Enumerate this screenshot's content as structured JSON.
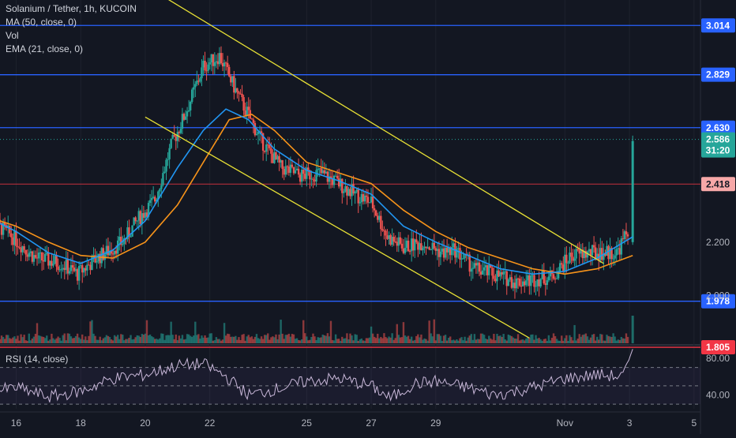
{
  "header": {
    "title": "Solanium / Tether, 1h, KUCOIN",
    "indicators": [
      "MA (50, close, 0)",
      "Vol",
      "EMA (21, close, 0)"
    ]
  },
  "rsi": {
    "label": "RSI (14, close)",
    "ticks": [
      "80.00",
      "40.00"
    ]
  },
  "colors": {
    "background": "#131722",
    "up": "#26a69a",
    "down": "#ef5350",
    "ma": "#f7931a",
    "ema": "#2196f3",
    "channel": "#e8e135",
    "support_line": "#2962ff",
    "red_line": "#f23645",
    "rsi_line": "#c9b8d9"
  },
  "chart_data": {
    "type": "candlestick",
    "symbol": "Solanium / Tether",
    "interval": "1h",
    "exchange": "KUCOIN",
    "x_ticks": [
      "16",
      "18",
      "20",
      "22",
      "25",
      "27",
      "29",
      "Nov",
      "3",
      "5"
    ],
    "y_ticks": [
      "2.200",
      "2.000"
    ],
    "price_range": [
      1.82,
      3.08
    ],
    "current_price": "2.586",
    "countdown": "31:20",
    "horizontal_levels": [
      {
        "value": 3.014,
        "label": "3.014",
        "style": "blue"
      },
      {
        "value": 2.829,
        "label": "2.829",
        "style": "blue"
      },
      {
        "value": 2.63,
        "label": "2.630",
        "style": "blue"
      },
      {
        "value": 2.418,
        "label": "2.418",
        "style": "red"
      },
      {
        "value": 1.978,
        "label": "1.978",
        "style": "blue"
      },
      {
        "value": 1.805,
        "label": "1.805",
        "style": "redsolid"
      }
    ],
    "channel_upper": [
      [
        20.6,
        3.12
      ],
      [
        34.2,
        2.12
      ]
    ],
    "channel_lower": [
      [
        20.0,
        2.67
      ],
      [
        31.9,
        1.84
      ]
    ],
    "candle_path": [
      [
        15.0,
        2.3
      ],
      [
        15.8,
        2.23
      ],
      [
        16.6,
        2.14
      ],
      [
        17.4,
        2.12
      ],
      [
        17.9,
        2.08
      ],
      [
        18.5,
        2.14
      ],
      [
        19.3,
        2.2
      ],
      [
        19.8,
        2.29
      ],
      [
        20.3,
        2.36
      ],
      [
        20.8,
        2.56
      ],
      [
        21.3,
        2.7
      ],
      [
        21.8,
        2.86
      ],
      [
        22.3,
        2.9
      ],
      [
        22.8,
        2.77
      ],
      [
        23.6,
        2.58
      ],
      [
        24.2,
        2.48
      ],
      [
        24.8,
        2.45
      ],
      [
        25.4,
        2.46
      ],
      [
        26.0,
        2.42
      ],
      [
        26.5,
        2.38
      ],
      [
        27.0,
        2.35
      ],
      [
        27.5,
        2.22
      ],
      [
        28.0,
        2.18
      ],
      [
        28.6,
        2.2
      ],
      [
        29.2,
        2.16
      ],
      [
        29.6,
        2.17
      ],
      [
        30.2,
        2.1
      ],
      [
        30.8,
        2.08
      ],
      [
        31.5,
        2.05
      ],
      [
        32.0,
        2.06
      ],
      [
        32.6,
        2.07
      ],
      [
        33.2,
        2.15
      ],
      [
        33.8,
        2.16
      ],
      [
        34.6,
        2.16
      ],
      [
        35.0,
        2.25
      ]
    ],
    "breakout": {
      "x": 35.1,
      "open": 2.2,
      "high": 2.6,
      "low": 2.19,
      "close": 2.58
    },
    "ema_path": [
      [
        15.0,
        2.3
      ],
      [
        16.0,
        2.24
      ],
      [
        17.0,
        2.16
      ],
      [
        18.0,
        2.12
      ],
      [
        19.0,
        2.17
      ],
      [
        20.0,
        2.28
      ],
      [
        21.0,
        2.48
      ],
      [
        21.8,
        2.62
      ],
      [
        22.5,
        2.7
      ],
      [
        23.2,
        2.66
      ],
      [
        24.0,
        2.55
      ],
      [
        25.0,
        2.47
      ],
      [
        26.0,
        2.43
      ],
      [
        27.0,
        2.38
      ],
      [
        28.0,
        2.26
      ],
      [
        29.0,
        2.2
      ],
      [
        30.0,
        2.15
      ],
      [
        31.0,
        2.1
      ],
      [
        32.0,
        2.08
      ],
      [
        33.0,
        2.09
      ],
      [
        34.0,
        2.14
      ],
      [
        35.1,
        2.22
      ]
    ],
    "ma_path": [
      [
        15.0,
        2.3
      ],
      [
        16.0,
        2.26
      ],
      [
        17.0,
        2.2
      ],
      [
        18.0,
        2.15
      ],
      [
        19.0,
        2.14
      ],
      [
        20.0,
        2.2
      ],
      [
        21.0,
        2.34
      ],
      [
        21.8,
        2.5
      ],
      [
        22.6,
        2.66
      ],
      [
        23.3,
        2.68
      ],
      [
        24.0,
        2.62
      ],
      [
        25.0,
        2.5
      ],
      [
        26.0,
        2.46
      ],
      [
        27.0,
        2.42
      ],
      [
        28.0,
        2.32
      ],
      [
        29.0,
        2.24
      ],
      [
        30.0,
        2.18
      ],
      [
        31.0,
        2.14
      ],
      [
        32.0,
        2.1
      ],
      [
        33.0,
        2.08
      ],
      [
        34.0,
        2.1
      ],
      [
        35.1,
        2.15
      ]
    ],
    "rsi_range": [
      25,
      92
    ],
    "rsi_levels": [
      70,
      50,
      30
    ],
    "rsi_path": [
      [
        15.0,
        42
      ],
      [
        16.0,
        48
      ],
      [
        17.0,
        38
      ],
      [
        18.0,
        44
      ],
      [
        19.0,
        58
      ],
      [
        20.0,
        62
      ],
      [
        21.0,
        72
      ],
      [
        21.8,
        74
      ],
      [
        22.5,
        60
      ],
      [
        23.2,
        40
      ],
      [
        24.0,
        46
      ],
      [
        25.0,
        55
      ],
      [
        26.0,
        58
      ],
      [
        27.0,
        50
      ],
      [
        27.6,
        36
      ],
      [
        28.3,
        52
      ],
      [
        29.0,
        55
      ],
      [
        30.0,
        48
      ],
      [
        30.8,
        40
      ],
      [
        31.5,
        44
      ],
      [
        32.2,
        50
      ],
      [
        33.0,
        58
      ],
      [
        34.0,
        62
      ],
      [
        34.8,
        60
      ],
      [
        35.1,
        90
      ]
    ]
  }
}
